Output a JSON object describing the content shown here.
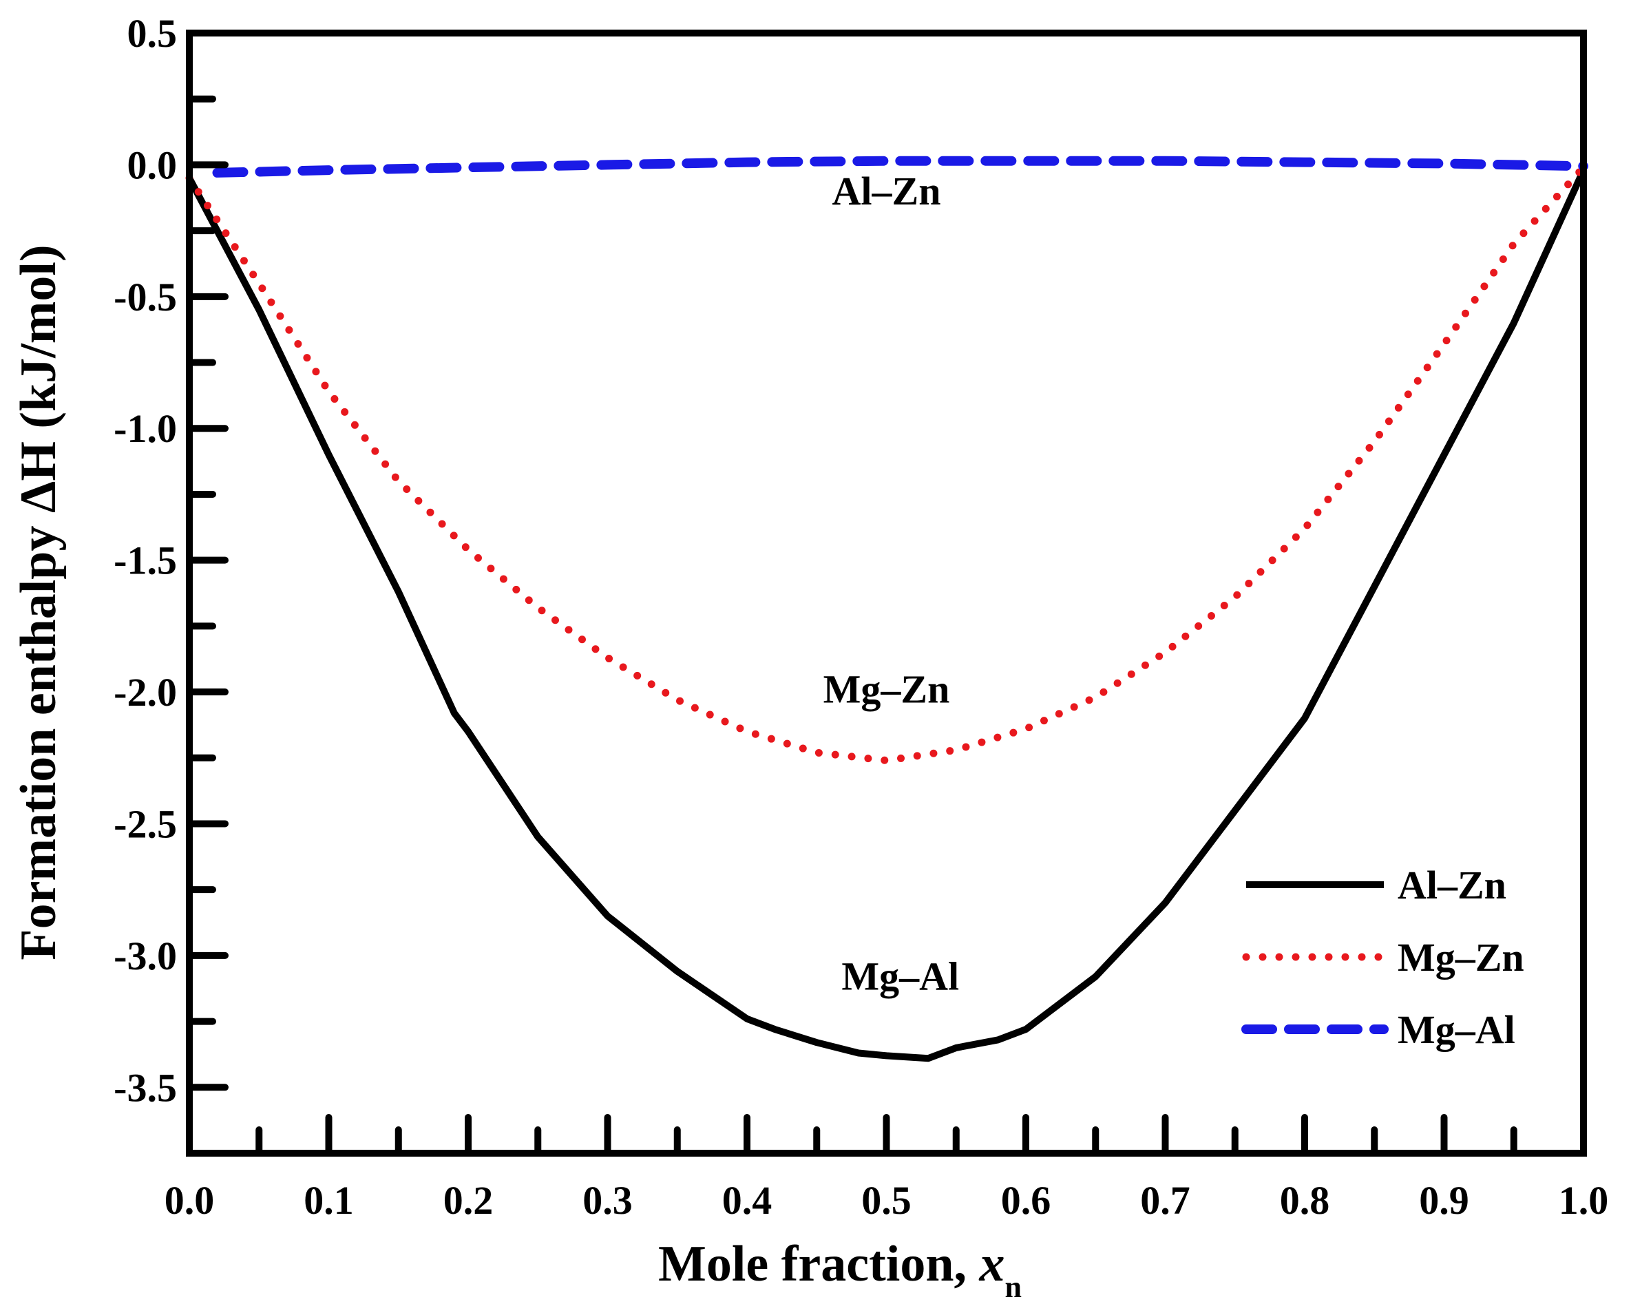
{
  "chart_data": {
    "type": "line",
    "title": "",
    "xlabel": "Mole fraction, ",
    "xlabel_var": "x",
    "xlabel_sub": "n",
    "ylabel": "Formation enthalpy ΔH (kJ/mol)",
    "xlim": [
      0.0,
      1.0
    ],
    "ylim": [
      -3.75,
      0.5
    ],
    "xticks": [
      "0.0",
      "0.1",
      "0.2",
      "0.3",
      "0.4",
      "0.5",
      "0.6",
      "0.7",
      "0.8",
      "0.9",
      "1.0"
    ],
    "yticks": [
      "0.5",
      "0.0",
      "-0.5",
      "-1.0",
      "-1.5",
      "-2.0",
      "-2.5",
      "-3.0",
      "-3.5"
    ],
    "grid": false,
    "legend_position": "bottom-right",
    "series": [
      {
        "name": "Al–Zn",
        "color": "#000000",
        "style": "solid",
        "x": [
          0.0,
          0.05,
          0.1,
          0.15,
          0.19,
          0.2,
          0.25,
          0.3,
          0.35,
          0.4,
          0.42,
          0.45,
          0.48,
          0.5,
          0.53,
          0.55,
          0.58,
          0.6,
          0.65,
          0.7,
          0.75,
          0.8,
          0.85,
          0.9,
          0.95,
          1.0
        ],
        "y": [
          -0.05,
          -0.55,
          -1.1,
          -1.62,
          -2.08,
          -2.15,
          -2.55,
          -2.85,
          -3.06,
          -3.24,
          -3.28,
          -3.33,
          -3.37,
          -3.38,
          -3.39,
          -3.35,
          -3.32,
          -3.28,
          -3.08,
          -2.8,
          -2.45,
          -2.1,
          -1.6,
          -1.1,
          -0.6,
          -0.02
        ]
      },
      {
        "name": "Mg–Zn",
        "color": "#e8181d",
        "style": "dotted",
        "x": [
          0.0,
          0.05,
          0.1,
          0.15,
          0.2,
          0.25,
          0.3,
          0.35,
          0.4,
          0.45,
          0.5,
          0.55,
          0.6,
          0.65,
          0.7,
          0.75,
          0.8,
          0.85,
          0.9,
          0.95,
          1.0
        ],
        "y": [
          -0.05,
          -0.45,
          -0.86,
          -1.2,
          -1.46,
          -1.68,
          -1.87,
          -2.03,
          -2.15,
          -2.23,
          -2.26,
          -2.22,
          -2.14,
          -2.02,
          -1.85,
          -1.64,
          -1.38,
          -1.05,
          -0.68,
          -0.3,
          -0.01
        ]
      },
      {
        "name": "Mg–Al",
        "color": "#1a1ae6",
        "style": "dashed",
        "x": [
          0.02,
          0.1,
          0.2,
          0.3,
          0.4,
          0.5,
          0.6,
          0.7,
          0.8,
          0.9,
          1.0
        ],
        "y": [
          -0.03,
          -0.02,
          -0.01,
          0.0,
          0.01,
          0.015,
          0.015,
          0.015,
          0.01,
          0.005,
          -0.005
        ]
      }
    ],
    "annotations": [
      {
        "text": "Al–Zn",
        "x": 0.5,
        "y": -0.15
      },
      {
        "text": "Mg–Zn",
        "x": 0.5,
        "y": -2.04
      },
      {
        "text": "Mg–Al",
        "x": 0.51,
        "y": -3.13
      }
    ]
  }
}
